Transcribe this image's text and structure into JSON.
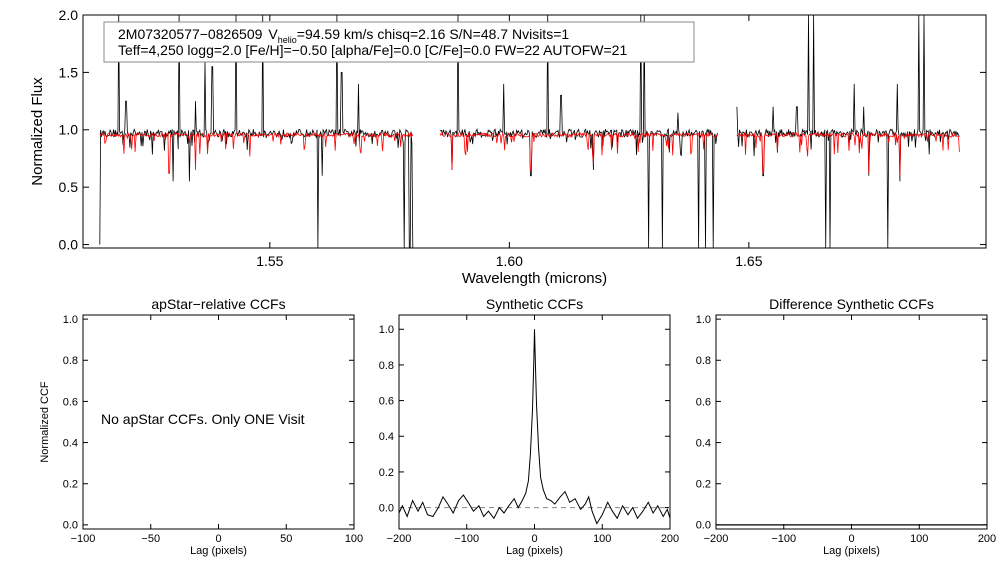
{
  "info": {
    "line1_id": "2M07320577−0826509",
    "line1_v": "V",
    "line1_vsub": "helio",
    "line1_rest": "=94.59 km/s  chisq=2.16  S/N=48.7  Nvisits=1",
    "line2": "Teff=4,250 logg=2.0 [Fe/H]=−0.50 [alpha/Fe]=0.0 [C/Fe]=0.0 FW=22 AUTOFW=21"
  },
  "no_ccf_message": "No apStar CCFs.  Only ONE Visit",
  "colors": {
    "observed": "#000000",
    "model": "#ff0000",
    "axis": "#000000",
    "dashed": "#888888"
  },
  "chart_data": [
    {
      "type": "line",
      "panel": "spectrum",
      "xlabel": "Wavelength (microns)",
      "ylabel": "Normalized Flux",
      "xlim": [
        1.511,
        1.6995
      ],
      "ylim": [
        -0.03,
        2.0
      ],
      "xticks": [
        1.55,
        1.6,
        1.65
      ],
      "xtick_labels": [
        "1.55",
        "1.60",
        "1.65"
      ],
      "yticks": [
        0.0,
        0.5,
        1.0,
        1.5,
        2.0
      ],
      "ytick_labels": [
        "0.0",
        "0.5",
        "1.0",
        "1.5",
        "2.0"
      ],
      "chips": [
        [
          1.5145,
          1.58
        ],
        [
          1.5855,
          1.6435
        ],
        [
          1.6475,
          1.694
        ]
      ],
      "series": [
        {
          "role": "observed",
          "continuum": 0.97,
          "absorption": [
            [
              1.5145,
              0.0
            ],
            [
              1.5298,
              0.55
            ],
            [
              1.5332,
              0.55
            ],
            [
              1.5345,
              0.65
            ],
            [
              1.56,
              -0.03
            ],
            [
              1.561,
              0.6
            ],
            [
              1.5685,
              0.55
            ],
            [
              1.578,
              -0.03
            ],
            [
              1.5792,
              -0.03
            ],
            [
              1.5798,
              -0.03
            ],
            [
              1.588,
              0.65
            ],
            [
              1.6045,
              0.6
            ],
            [
              1.6175,
              0.65
            ],
            [
              1.629,
              -0.03
            ],
            [
              1.632,
              -0.03
            ],
            [
              1.6395,
              -0.03
            ],
            [
              1.641,
              -0.03
            ],
            [
              1.6425,
              -0.03
            ],
            [
              1.653,
              0.6
            ],
            [
              1.666,
              -0.03
            ],
            [
              1.667,
              -0.03
            ],
            [
              1.675,
              0.6
            ],
            [
              1.679,
              -0.03
            ],
            [
              1.6815,
              0.55
            ],
            [
              1.6855,
              -0.03
            ]
          ],
          "emission": [
            [
              1.5185,
              2.0
            ],
            [
              1.52,
              1.25
            ],
            [
              1.531,
              2.0
            ],
            [
              1.5345,
              1.25
            ],
            [
              1.5365,
              1.6
            ],
            [
              1.538,
              1.55
            ],
            [
              1.543,
              2.0
            ],
            [
              1.5485,
              2.0
            ],
            [
              1.564,
              2.0
            ],
            [
              1.565,
              1.5
            ],
            [
              1.5685,
              1.4
            ],
            [
              1.5893,
              2.0
            ],
            [
              1.5988,
              1.4
            ],
            [
              1.608,
              2.0
            ],
            [
              1.6108,
              1.3
            ],
            [
              1.6275,
              2.0
            ],
            [
              1.6282,
              2.0
            ],
            [
              1.6352,
              1.15
            ],
            [
              1.6475,
              1.2
            ],
            [
              1.655,
              1.2
            ],
            [
              1.66,
              1.2
            ],
            [
              1.6625,
              2.0
            ],
            [
              1.6635,
              2.0
            ],
            [
              1.672,
              1.4
            ],
            [
              1.674,
              1.2
            ],
            [
              1.681,
              1.4
            ],
            [
              1.6855,
              2.0
            ],
            [
              1.6865,
              2.0
            ]
          ]
        },
        {
          "role": "model",
          "continuum": 0.955,
          "absorption": [
            [
              1.529,
              0.62
            ],
            [
              1.5345,
              0.65
            ],
            [
              1.588,
              0.65
            ],
            [
              1.6045,
              0.65
            ],
            [
              1.6175,
              0.7
            ],
            [
              1.653,
              0.62
            ],
            [
              1.675,
              0.62
            ],
            [
              1.6815,
              0.6
            ]
          ]
        }
      ]
    },
    {
      "type": "line",
      "panel": "apstar-ccf",
      "title": "apStar−relative CCFs",
      "xlabel": "Lag (pixels)",
      "ylabel": "Normalized CCF",
      "xlim": [
        -100,
        100
      ],
      "ylim": [
        -0.02,
        1.02
      ],
      "xticks": [
        -100,
        -50,
        0,
        50,
        100
      ],
      "xtick_labels": [
        "−100",
        "−50",
        "0",
        "50",
        "100"
      ],
      "yticks": [
        0.0,
        0.2,
        0.4,
        0.6,
        0.8,
        1.0
      ],
      "ytick_labels": [
        "0.0",
        "0.2",
        "0.4",
        "0.6",
        "0.8",
        "1.0"
      ],
      "series": []
    },
    {
      "type": "line",
      "panel": "synthetic-ccf",
      "title": "Synthetic CCFs",
      "xlabel": "Lag (pixels)",
      "xlim": [
        -200,
        200
      ],
      "ylim": [
        -0.12,
        1.08
      ],
      "xticks": [
        -200,
        -100,
        0,
        100,
        200
      ],
      "xtick_labels": [
        "−200",
        "−100",
        "0",
        "100",
        "200"
      ],
      "yticks": [
        0.0,
        0.2,
        0.4,
        0.6,
        0.8,
        1.0
      ],
      "ytick_labels": [
        "0.0",
        "0.2",
        "0.4",
        "0.6",
        "0.8",
        "1.0"
      ],
      "zero_line": 0.0,
      "series": [
        {
          "x": [
            -200,
            -195,
            -188,
            -180,
            -172,
            -165,
            -158,
            -150,
            -142,
            -135,
            -128,
            -120,
            -112,
            -105,
            -98,
            -90,
            -82,
            -75,
            -68,
            -60,
            -52,
            -45,
            -38,
            -30,
            -24,
            -18,
            -13,
            -9,
            -6,
            -3,
            -1,
            0,
            1,
            3,
            6,
            9,
            13,
            18,
            24,
            30,
            38,
            45,
            52,
            60,
            68,
            75,
            80,
            85,
            92,
            100,
            108,
            115,
            122,
            130,
            138,
            145,
            152,
            160,
            168,
            175,
            182,
            190,
            196,
            200
          ],
          "y": [
            -0.03,
            0.01,
            -0.05,
            0.04,
            -0.02,
            0.03,
            -0.04,
            -0.05,
            0.0,
            0.06,
            0.02,
            -0.03,
            0.04,
            0.07,
            0.03,
            -0.02,
            0.01,
            -0.05,
            -0.02,
            -0.06,
            0.0,
            -0.03,
            0.01,
            0.05,
            0.0,
            0.04,
            0.08,
            0.15,
            0.3,
            0.55,
            0.82,
            1.0,
            0.85,
            0.58,
            0.33,
            0.17,
            0.1,
            0.05,
            0.04,
            0.02,
            0.06,
            0.09,
            0.03,
            0.05,
            -0.01,
            0.02,
            0.06,
            -0.02,
            -0.09,
            -0.04,
            0.03,
            -0.02,
            -0.06,
            0.01,
            -0.04,
            0.0,
            -0.06,
            -0.02,
            0.03,
            -0.03,
            0.01,
            -0.05,
            -0.01,
            -0.06
          ]
        }
      ]
    },
    {
      "type": "line",
      "panel": "difference-ccf",
      "title": "Difference Synthetic CCFs",
      "xlabel": "Lag (pixels)",
      "xlim": [
        -200,
        200
      ],
      "ylim": [
        -0.02,
        1.02
      ],
      "xticks": [
        -200,
        -100,
        0,
        100,
        200
      ],
      "xtick_labels": [
        "−200",
        "−100",
        "0",
        "100",
        "200"
      ],
      "yticks": [
        0.0,
        0.2,
        0.4,
        0.6,
        0.8,
        1.0
      ],
      "ytick_labels": [
        "0.0",
        "0.2",
        "0.4",
        "0.6",
        "0.8",
        "1.0"
      ],
      "series": [
        {
          "x": [
            -200,
            200
          ],
          "y": [
            0.0,
            0.0
          ]
        }
      ]
    }
  ]
}
